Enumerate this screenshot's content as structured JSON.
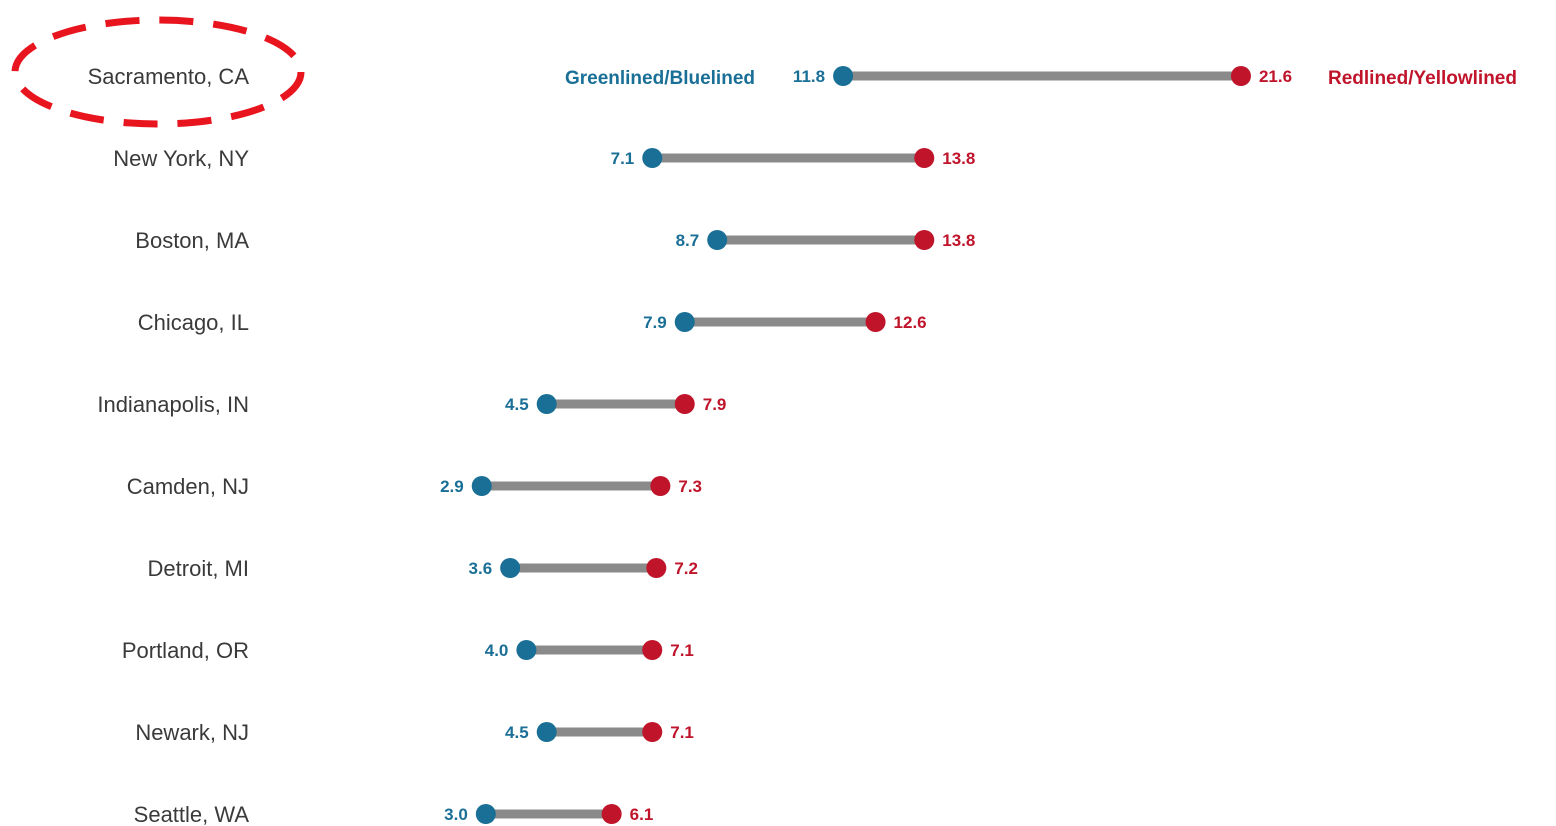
{
  "chart_data": {
    "type": "dumbbell",
    "title": "",
    "xlabel": "",
    "ylabel": "",
    "xlim": [
      0,
      23
    ],
    "grid": false,
    "categories": [
      "Sacramento, CA",
      "New York, NY",
      "Boston, MA",
      "Chicago, IL",
      "Indianapolis, IN",
      "Camden, NJ",
      "Detroit, MI",
      "Portland, OR",
      "Newark, NJ",
      "Seattle, WA"
    ],
    "series": [
      {
        "name": "Greenlined/Bluelined",
        "values": [
          11.8,
          7.1,
          8.7,
          7.9,
          4.5,
          2.9,
          3.6,
          4.0,
          4.5,
          3.0
        ],
        "labels": [
          "11.8",
          "7.1",
          "8.7",
          "7.9",
          "4.5",
          "2.9",
          "3.6",
          "4.0",
          "4.5",
          "3.0"
        ]
      },
      {
        "name": "Redlined/Yellowlined",
        "values": [
          21.6,
          13.8,
          13.8,
          12.6,
          7.9,
          7.3,
          7.2,
          7.1,
          7.1,
          6.1
        ],
        "labels": [
          "21.6",
          "13.8",
          "13.8",
          "12.6",
          "7.9",
          "7.3",
          "7.2",
          "7.1",
          "7.1",
          "6.1"
        ]
      }
    ],
    "highlight": {
      "category": "Sacramento, CA",
      "style": "dashed-ellipse"
    },
    "colors": {
      "green_series": "#1a6f96",
      "red_series": "#c0142b",
      "connector": "#8a8a8a",
      "highlight": "#e8141e",
      "city_text": "#3a3a3a"
    }
  }
}
